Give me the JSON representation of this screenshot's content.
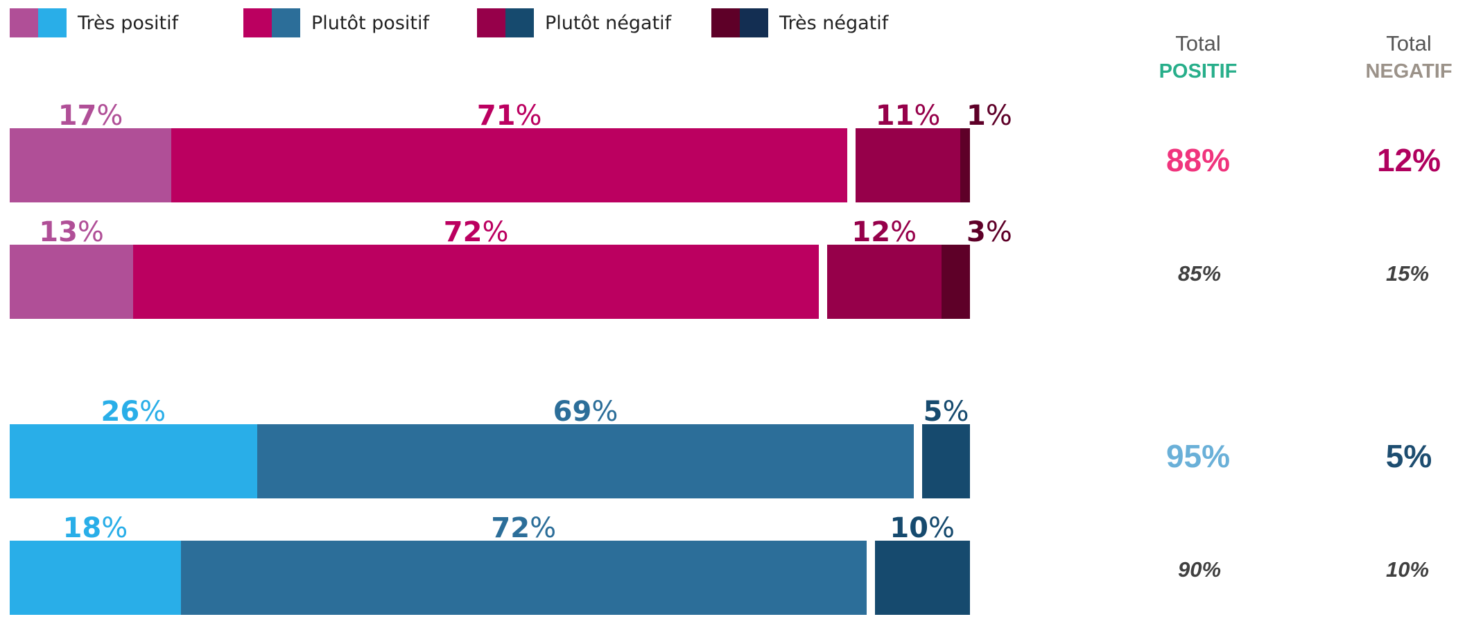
{
  "legend": [
    {
      "label": "Très positif",
      "colors": [
        "#b04f97",
        "#29aee8"
      ]
    },
    {
      "label": "Plutôt positif",
      "colors": [
        "#bb0060",
        "#2c6e99"
      ]
    },
    {
      "label": "Plutôt négatif",
      "colors": [
        "#96004a",
        "#164a6e"
      ]
    },
    {
      "label": "Très négatif",
      "colors": [
        "#5e0028",
        "#132e52"
      ]
    }
  ],
  "columns": {
    "positif": {
      "line1": "Total",
      "line2": "POSITIF",
      "color": "#27ae8a"
    },
    "negatif": {
      "line1": "Total",
      "line2": "NEGATIF",
      "color": "#9b9289"
    }
  },
  "chart_data": {
    "type": "bar",
    "orientation": "horizontal",
    "stacked": true,
    "series_names": [
      "Très positif",
      "Plutôt positif",
      "Plutôt négatif",
      "Très négatif"
    ],
    "rows": [
      {
        "group": "pink",
        "values": [
          17,
          71,
          11,
          1
        ],
        "labels": [
          "17",
          "71",
          "11",
          "1"
        ],
        "value_suffix": "%",
        "total_positif": "88%",
        "total_negatif": "12%",
        "emphasis": "big"
      },
      {
        "group": "pink",
        "values": [
          13,
          72,
          12,
          3
        ],
        "labels": [
          "13",
          "72",
          "12",
          "3"
        ],
        "value_suffix": "%",
        "total_positif": "85%",
        "total_negatif": "15%",
        "emphasis": "small"
      },
      {
        "group": "blue",
        "values": [
          26,
          69,
          5,
          0
        ],
        "labels": [
          "26",
          "69",
          "5",
          ""
        ],
        "value_suffix": "%",
        "total_positif": "95%",
        "total_negatif": "5%",
        "emphasis": "big"
      },
      {
        "group": "blue",
        "values": [
          18,
          72,
          10,
          0
        ],
        "labels": [
          "18",
          "72",
          "10",
          ""
        ],
        "value_suffix": "%",
        "total_positif": "90%",
        "total_negatif": "10%",
        "emphasis": "small"
      }
    ],
    "palette": {
      "pink": {
        "segments": [
          "#b04f97",
          "#bb0060",
          "#96004a",
          "#5e0028"
        ],
        "labels": [
          "#b04f97",
          "#bb0060",
          "#96004a",
          "#5e0028"
        ],
        "total_pos": "#f0347d",
        "total_neg": "#b0005e"
      },
      "blue": {
        "segments": [
          "#29aee8",
          "#2c6e99",
          "#164a6e",
          "#132e52"
        ],
        "labels": [
          "#29aee8",
          "#2c6e99",
          "#164a6e",
          "#132e52"
        ],
        "total_pos": "#6ab0d8",
        "total_neg": "#1d4d70"
      }
    },
    "xlim": [
      0,
      100
    ]
  }
}
